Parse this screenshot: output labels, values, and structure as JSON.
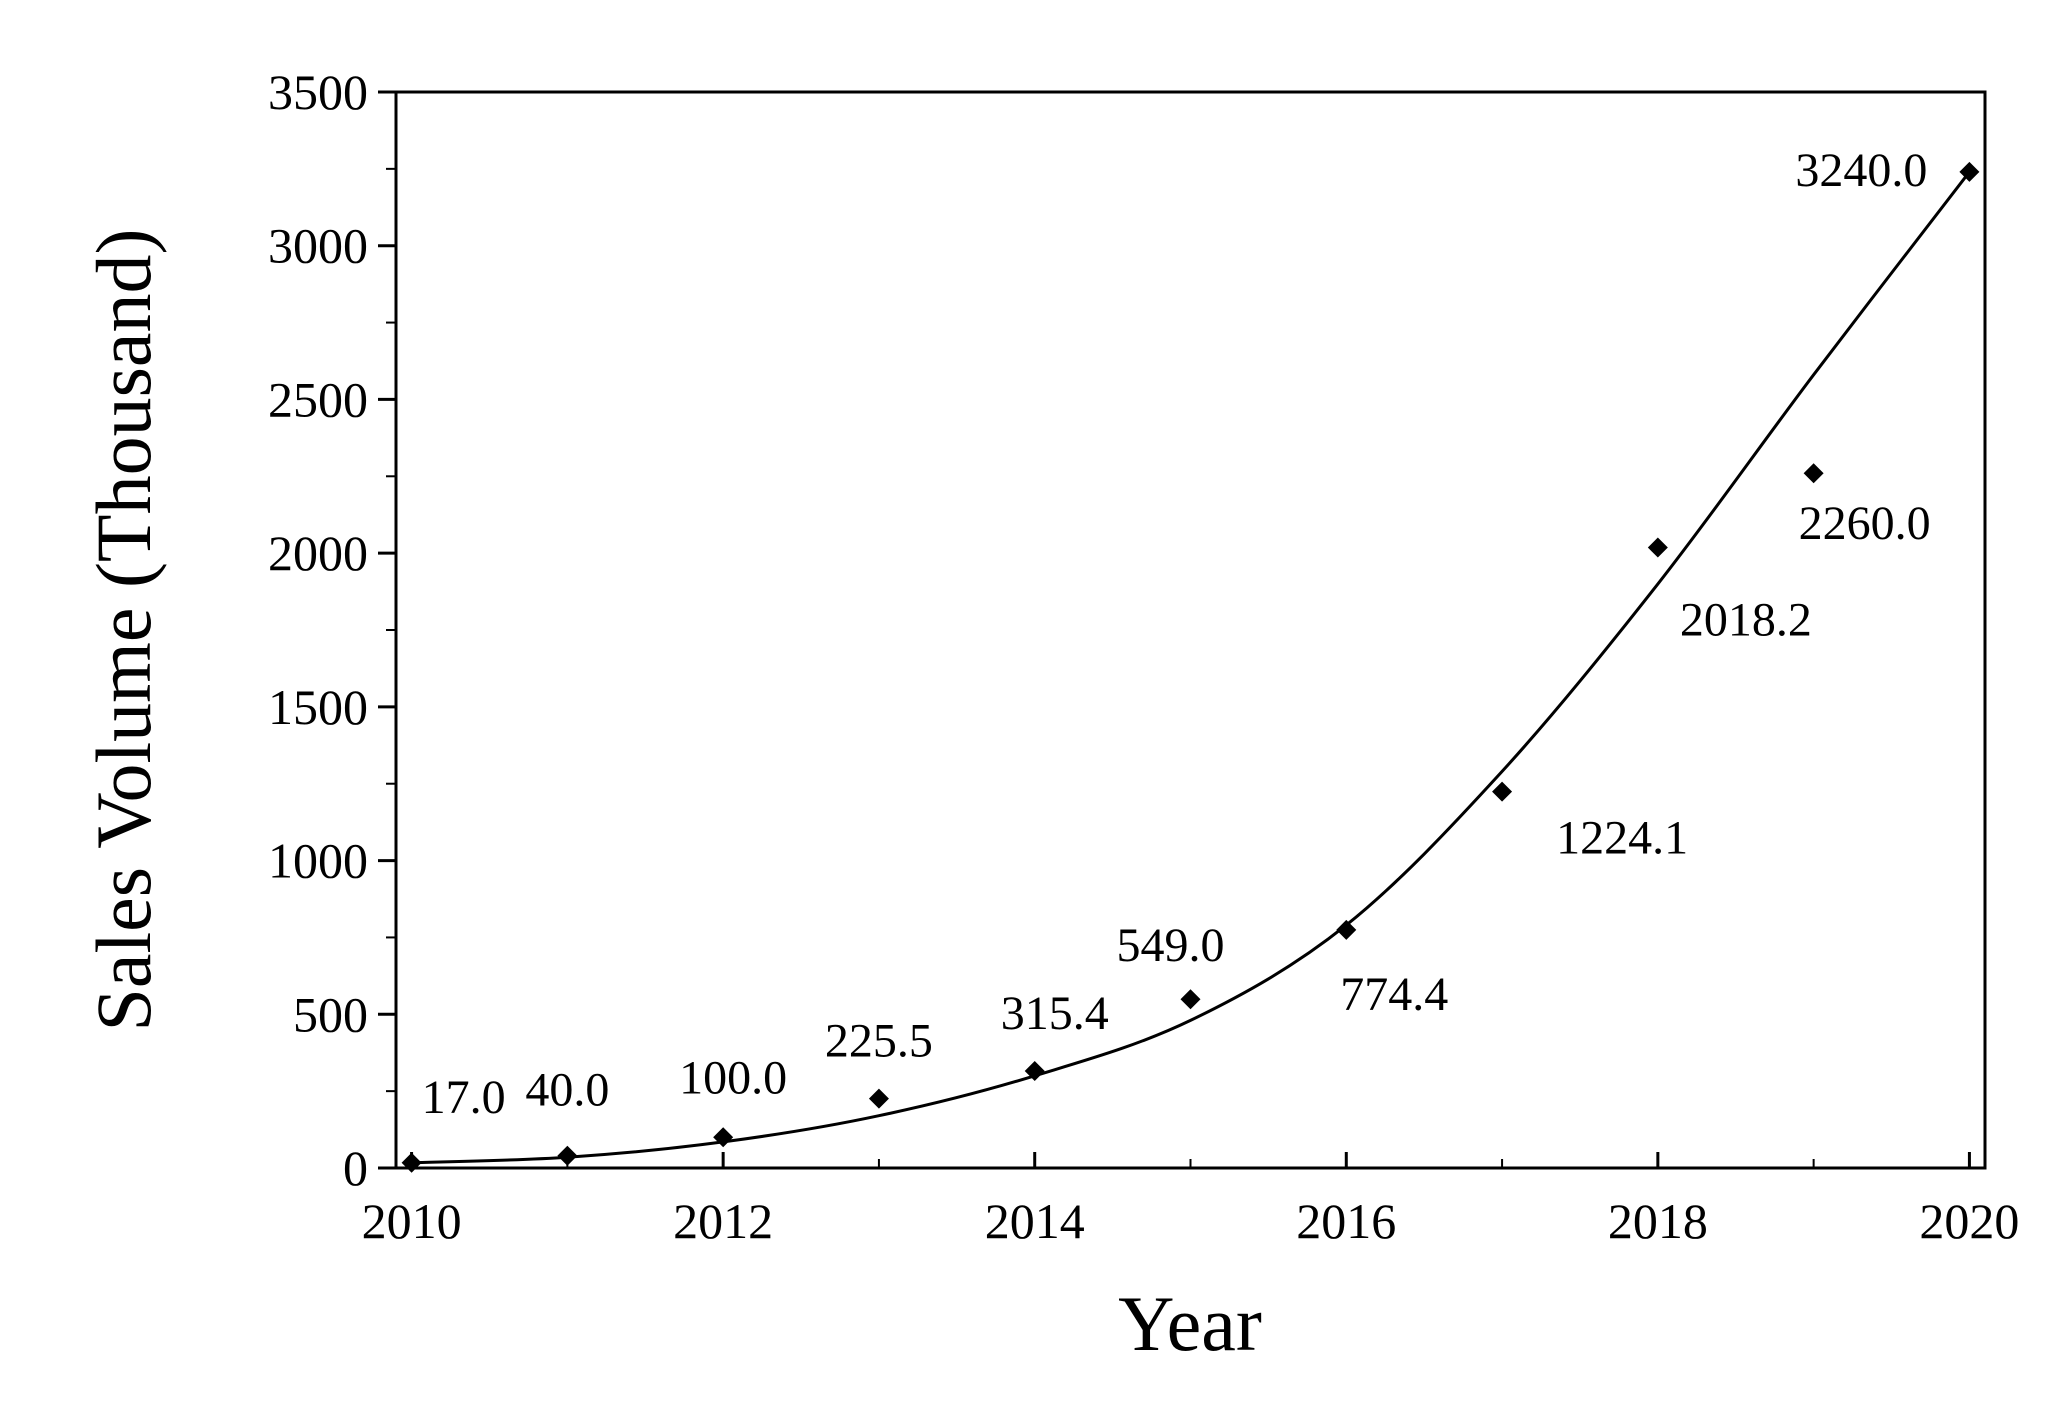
{
  "chart_data": {
    "type": "scatter",
    "title": "",
    "xlabel": "Year",
    "ylabel": "Sales Volume (Thousand)",
    "xlim": [
      2009.9,
      2020.1
    ],
    "ylim": [
      0,
      3500
    ],
    "xticks": [
      2010,
      2012,
      2014,
      2016,
      2018,
      2020
    ],
    "yticks": [
      0,
      500,
      1000,
      1500,
      2000,
      2500,
      3000,
      3500
    ],
    "grid": false,
    "legend": "none",
    "marker": "diamond",
    "fit_line": "smooth",
    "color": "#000000",
    "series": [
      {
        "x": [
          2010,
          2011,
          2012,
          2013,
          2014,
          2015,
          2016,
          2017,
          2018,
          2019,
          2020
        ],
        "values": [
          17.0,
          40.0,
          100.0,
          225.5,
          315.4,
          549.0,
          774.4,
          1224.1,
          2018.2,
          2260.0,
          3240.0
        ],
        "labels": [
          "17.0",
          "40.0",
          "100.0",
          "225.5",
          "315.4",
          "549.0",
          "774.4",
          "1224.1",
          "2018.2",
          "2260.0",
          "3240.0"
        ]
      }
    ],
    "fit": {
      "x": [
        2010,
        2011,
        2012,
        2013,
        2014,
        2015,
        2016,
        2017,
        2018,
        2019,
        2020
      ],
      "values": [
        17,
        35,
        85,
        170,
        300,
        480,
        790,
        1290,
        1900,
        2580,
        3240
      ]
    }
  }
}
